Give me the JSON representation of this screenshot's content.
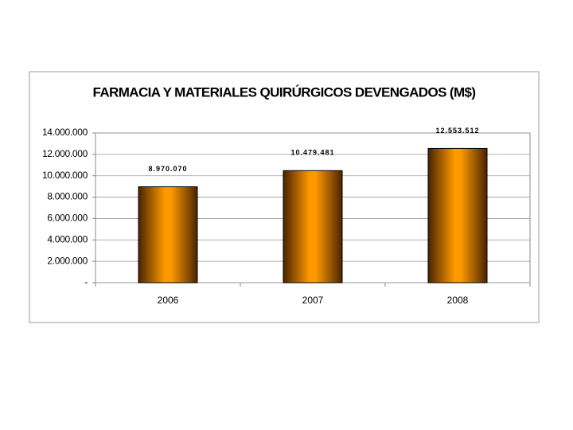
{
  "chart_data": {
    "type": "bar",
    "title": "FARMACIA Y MATERIALES QUIRÚRGICOS DEVENGADOS (M$)",
    "categories": [
      "2006",
      "2007",
      "2008"
    ],
    "values": [
      8970070,
      10479481,
      12553512
    ],
    "value_labels": [
      "8.970.070",
      "10.479.481",
      "12.553.512"
    ],
    "color": "#ff9900",
    "ylim": [
      0,
      14000000
    ],
    "yticks": [
      {
        "value": 0,
        "label": "-"
      },
      {
        "value": 2000000,
        "label": "2.000.000"
      },
      {
        "value": 4000000,
        "label": "4.000.000"
      },
      {
        "value": 6000000,
        "label": "6.000.000"
      },
      {
        "value": 8000000,
        "label": "8.000.000"
      },
      {
        "value": 10000000,
        "label": "10.000.000"
      },
      {
        "value": 12000000,
        "label": "12.000.000"
      },
      {
        "value": 14000000,
        "label": "14.000.000"
      }
    ],
    "grid": true
  }
}
